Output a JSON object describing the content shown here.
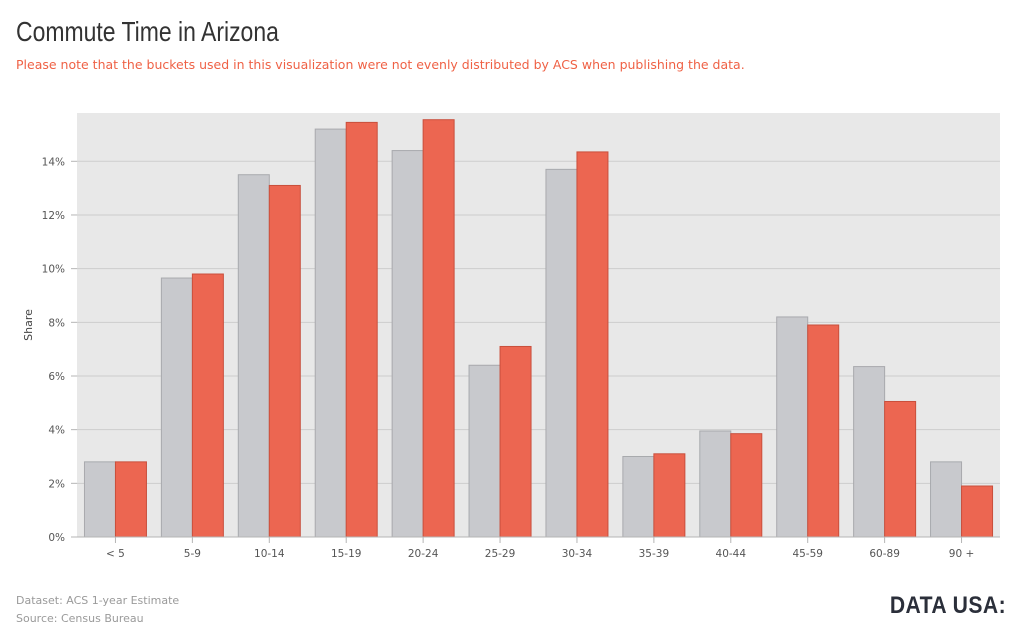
{
  "header": {
    "title": "Commute Time in Arizona",
    "subtitle": "Please note that the buckets used in this visualization were not evenly distributed by ACS when publishing the data."
  },
  "footer": {
    "dataset": "Dataset: ACS 1-year Estimate",
    "source": "Source: Census Bureau",
    "logo": "DATA USA:"
  },
  "colors": {
    "gray_series": "#c8c9cd",
    "orange_series": "#ec6651",
    "plot_background": "#e8e8e8",
    "gridline": "#cdcdcd"
  },
  "chart_data": {
    "type": "bar",
    "title": "Commute Time in Arizona",
    "subtitle": "Please note that the buckets used in this visualization were not evenly distributed by ACS when publishing the data.",
    "xlabel": "",
    "ylabel": "Share",
    "ylim": [
      0,
      15.8
    ],
    "yticks": [
      0,
      2,
      4,
      6,
      8,
      10,
      12,
      14
    ],
    "ytick_labels": [
      "0%",
      "2%",
      "4%",
      "6%",
      "8%",
      "10%",
      "12%",
      "14%"
    ],
    "grid": true,
    "legend": "none",
    "categories": [
      "< 5",
      "5-9",
      "10-14",
      "15-19",
      "20-24",
      "25-29",
      "30-34",
      "35-39",
      "40-44",
      "45-59",
      "60-89",
      "90 +"
    ],
    "series": [
      {
        "color": "#c8c9cd",
        "values": [
          2.8,
          9.65,
          13.5,
          15.2,
          14.4,
          6.4,
          13.7,
          3.0,
          3.95,
          8.2,
          6.35,
          2.8
        ]
      },
      {
        "color": "#ec6651",
        "values": [
          2.8,
          9.8,
          13.1,
          15.45,
          15.55,
          7.1,
          14.35,
          3.1,
          3.85,
          7.9,
          5.05,
          1.9
        ]
      }
    ]
  }
}
